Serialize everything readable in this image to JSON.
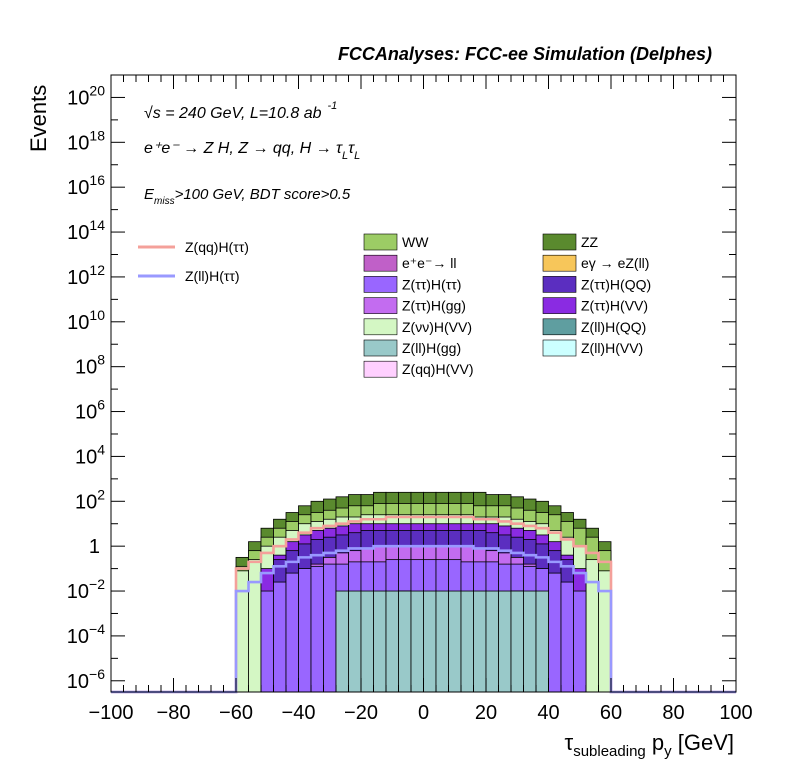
{
  "chart_data": {
    "type": "bar",
    "title": "FCCAnalyses: FCC-ee Simulation (Delphes)",
    "xlabel_parts": [
      "τ",
      "subleading",
      "p",
      "y",
      "[GeV]"
    ],
    "ylabel": "Events",
    "xlim": [
      -100,
      100
    ],
    "ylog": true,
    "ylim_exp": [
      -6.5,
      21
    ],
    "x_ticks": [
      "−100",
      "−80",
      "−60",
      "−40",
      "−20",
      "0",
      "20",
      "40",
      "60",
      "80",
      "100"
    ],
    "y_ticks": [
      {
        "v": -6,
        "base": "10",
        "exp": "−6"
      },
      {
        "v": -4,
        "base": "10",
        "exp": "−4"
      },
      {
        "v": -2,
        "base": "10",
        "exp": "−2"
      },
      {
        "v": 0,
        "base": "1",
        "exp": ""
      },
      {
        "v": 2,
        "base": "10",
        "exp": "2"
      },
      {
        "v": 4,
        "base": "10",
        "exp": "4"
      },
      {
        "v": 6,
        "base": "10",
        "exp": "6"
      },
      {
        "v": 8,
        "base": "10",
        "exp": "8"
      },
      {
        "v": 10,
        "base": "10",
        "exp": "10"
      },
      {
        "v": 12,
        "base": "10",
        "exp": "12"
      },
      {
        "v": 14,
        "base": "10",
        "exp": "14"
      },
      {
        "v": 16,
        "base": "10",
        "exp": "16"
      },
      {
        "v": 18,
        "base": "10",
        "exp": "18"
      },
      {
        "v": 20,
        "base": "10",
        "exp": "20"
      }
    ],
    "annotations": {
      "energy": "√s = 240 GeV, L=10.8 ab",
      "energy_sup": "-1",
      "process": "e⁺e⁻ → Z H, Z → qq, H → τ",
      "process_sub": "L",
      "selection_pre": "E",
      "selection_sub": "miss",
      "selection_post": ">100 GeV, BDT score>0.5"
    },
    "bin_edges": [
      -60,
      -56,
      -52,
      -48,
      -44,
      -40,
      -36,
      -32,
      -28,
      -24,
      -20,
      -16,
      -12,
      -8,
      -4,
      0,
      4,
      8,
      12,
      16,
      20,
      24,
      28,
      32,
      36,
      40,
      44,
      48,
      52,
      56,
      60
    ],
    "stack_exp": [
      {
        "name": "ZZ",
        "color": "#5a8a2e",
        "top": [
          -0.5,
          0.2,
          0.8,
          1.2,
          1.5,
          1.8,
          2.0,
          2.1,
          2.2,
          2.3,
          2.3,
          2.4,
          2.4,
          2.4,
          2.4,
          2.4,
          2.4,
          2.4,
          2.4,
          2.4,
          2.3,
          2.3,
          2.2,
          2.1,
          2.0,
          1.8,
          1.5,
          1.2,
          0.8,
          0.2
        ]
      },
      {
        "name": "WW",
        "color": "#9ccc65",
        "top": [
          -0.9,
          -0.2,
          0.4,
          0.8,
          1.1,
          1.4,
          1.5,
          1.6,
          1.7,
          1.8,
          1.8,
          1.9,
          1.9,
          1.9,
          1.9,
          1.9,
          1.9,
          1.9,
          1.9,
          1.8,
          1.8,
          1.8,
          1.7,
          1.6,
          1.5,
          1.4,
          1.1,
          0.8,
          0.4,
          -0.2
        ]
      },
      {
        "name": "Z(νν)H(VV)",
        "color": "#d4f7c4",
        "top": [
          -1.1,
          -0.6,
          0.0,
          0.4,
          0.7,
          1.0,
          1.1,
          1.2,
          1.3,
          1.3,
          1.4,
          1.4,
          1.4,
          1.4,
          1.4,
          1.4,
          1.4,
          1.4,
          1.4,
          1.3,
          1.3,
          1.3,
          1.2,
          1.1,
          1.0,
          0.7,
          0.4,
          0.0,
          -0.6,
          -1.1
        ]
      },
      {
        "name": "Z(ττ)H(VV)",
        "color": "#8a2be2",
        "top": [
          -6.5,
          -6.5,
          -1.0,
          -0.4,
          0.2,
          0.5,
          0.7,
          0.8,
          0.9,
          1.0,
          1.0,
          1.0,
          1.0,
          1.0,
          1.0,
          1.0,
          1.0,
          1.0,
          1.0,
          1.0,
          1.0,
          0.9,
          0.8,
          0.7,
          0.5,
          0.2,
          -0.4,
          -1.0,
          -6.5,
          -6.5
        ]
      },
      {
        "name": "Z(ττ)H(QQ)",
        "color": "#5b2ec0",
        "top": [
          -6.5,
          -6.5,
          -6.5,
          -0.6,
          -0.2,
          0.1,
          0.3,
          0.4,
          0.5,
          0.6,
          0.7,
          0.7,
          0.7,
          0.7,
          0.7,
          0.7,
          0.7,
          0.7,
          0.7,
          0.7,
          0.6,
          0.5,
          0.4,
          0.3,
          0.1,
          -0.2,
          -0.6,
          -6.5,
          -6.5,
          -6.5
        ]
      },
      {
        "name": "Z(ττ)H(gg)",
        "color": "#c36cf0",
        "top": [
          -6.5,
          -6.5,
          -6.5,
          -6.5,
          -6.5,
          -1.2,
          -0.8,
          -0.5,
          -0.3,
          -0.2,
          -0.1,
          0.0,
          0.0,
          0.0,
          0.0,
          0.0,
          0.0,
          0.0,
          0.0,
          -0.1,
          -0.2,
          -0.3,
          -0.5,
          -0.8,
          -1.2,
          -6.5,
          -6.5,
          -6.5,
          -6.5,
          -6.5
        ]
      },
      {
        "name": "Z(ττ)H(ττ)",
        "color": "#9966ff",
        "top": [
          -6.5,
          -6.5,
          -2.0,
          -1.6,
          -1.2,
          -1.0,
          -0.9,
          -0.8,
          -0.8,
          -0.7,
          -0.7,
          -0.7,
          -0.6,
          -0.6,
          -0.6,
          -0.6,
          -0.6,
          -0.6,
          -0.7,
          -0.7,
          -0.7,
          -0.8,
          -0.8,
          -0.9,
          -1.0,
          -1.2,
          -1.6,
          -2.0,
          -6.5,
          -6.5
        ]
      },
      {
        "name": "Z(ll)H(QQ)",
        "color": "#5f9ea0",
        "top": [
          -6.5,
          -6.5,
          -6.5,
          -6.5,
          -6.5,
          -6.5,
          -6.5,
          -6.5,
          -6.5,
          -6.5,
          -6.5,
          -6.5,
          -6.5,
          -6.5,
          -6.5,
          -6.5,
          -6.5,
          -6.5,
          -6.5,
          -6.5,
          -6.5,
          -6.5,
          -6.5,
          -6.5,
          -6.5,
          -6.5,
          -6.5,
          -6.5,
          -6.5,
          -6.5
        ]
      },
      {
        "name": "eγ → eZ(ll)",
        "color": "#f7c65a",
        "top": [
          -6.5,
          -6.5,
          -6.5,
          -6.5,
          -6.5,
          -6.5,
          -6.5,
          -6.5,
          -6.5,
          -6.5,
          -6.5,
          -6.5,
          -6.5,
          -2.0,
          -6.5,
          -6.5,
          -6.5,
          -6.5,
          -6.5,
          -6.5,
          -6.5,
          -6.5,
          -2.0,
          -6.5,
          -6.5,
          -6.5,
          -6.5,
          -6.5,
          -6.5,
          -6.5
        ]
      },
      {
        "name": "Z(ll)H(gg)",
        "color": "#99c9c9",
        "top": [
          -6.5,
          -6.5,
          -6.5,
          -6.5,
          -6.5,
          -6.5,
          -6.5,
          -6.5,
          -2.0,
          -2.0,
          -2.0,
          -2.0,
          -2.0,
          -2.0,
          -2.0,
          -2.0,
          -2.0,
          -2.0,
          -2.0,
          -2.0,
          -2.0,
          -2.0,
          -2.0,
          -2.0,
          -2.0,
          -6.5,
          -6.5,
          -6.5,
          -6.5,
          -6.5
        ]
      }
    ],
    "line_series": [
      {
        "name": "Z(qq)H(ττ)",
        "color": "#f4a09a",
        "exp": [
          -1.0,
          -0.7,
          -0.3,
          0.0,
          0.3,
          0.6,
          0.8,
          0.9,
          1.0,
          1.1,
          1.2,
          1.2,
          1.3,
          1.3,
          1.3,
          1.3,
          1.3,
          1.3,
          1.3,
          1.2,
          1.2,
          1.1,
          1.0,
          0.9,
          0.8,
          0.6,
          0.3,
          0.0,
          -0.3,
          -0.7
        ]
      },
      {
        "name": "Z(ll)H(ττ)",
        "color": "#9999ff",
        "exp": [
          -2.0,
          -1.6,
          -1.2,
          -0.9,
          -0.7,
          -0.5,
          -0.4,
          -0.3,
          -0.2,
          -0.1,
          -0.1,
          0.0,
          0.0,
          0.0,
          0.0,
          0.0,
          0.0,
          0.0,
          0.0,
          -0.1,
          -0.1,
          -0.2,
          -0.3,
          -0.4,
          -0.5,
          -0.7,
          -0.9,
          -1.2,
          -1.6,
          -2.0
        ]
      }
    ],
    "legend_lines": [
      {
        "label": "Z(qq)H(ττ)",
        "color": "#f4a09a"
      },
      {
        "label": "Z(ll)H(ττ)",
        "color": "#9999ff"
      }
    ],
    "legend_col1": [
      {
        "label": "WW",
        "color": "#9ccc65"
      },
      {
        "label": "e⁺e⁻→ ll",
        "color": "#c060c8"
      },
      {
        "label": "Z(ττ)H(ττ)",
        "color": "#9966ff"
      },
      {
        "label": "Z(ττ)H(gg)",
        "color": "#c36cf0"
      },
      {
        "label": "Z(νν)H(VV)",
        "color": "#d4f7c4"
      },
      {
        "label": "Z(ll)H(gg)",
        "color": "#99c9c9"
      },
      {
        "label": "Z(qq)H(VV)",
        "color": "#ffd0ff"
      }
    ],
    "legend_col2": [
      {
        "label": "ZZ",
        "color": "#5a8a2e"
      },
      {
        "label": "eγ → eZ(ll)",
        "color": "#f7c65a"
      },
      {
        "label": "Z(ττ)H(QQ)",
        "color": "#5b2ec0"
      },
      {
        "label": "Z(ττ)H(VV)",
        "color": "#8a2be2"
      },
      {
        "label": "Z(ll)H(QQ)",
        "color": "#5f9ea0"
      },
      {
        "label": "Z(ll)H(VV)",
        "color": "#ccffff"
      }
    ]
  }
}
